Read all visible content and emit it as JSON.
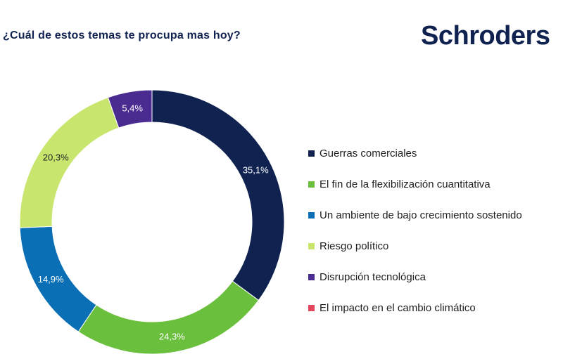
{
  "header": {
    "title": "¿Cuál de estos temas te procupa mas hoy?",
    "logo_text": "Schroders"
  },
  "chart_data": {
    "type": "pie",
    "variant": "donut",
    "title": "¿Cuál de estos temas te procupa mas hoy?",
    "legend_position": "right",
    "series": [
      {
        "name": "Guerras comerciales",
        "value": 35.1,
        "label": "35,1%",
        "color": "#0f2250",
        "label_color": "#ffffff"
      },
      {
        "name": "El fin de la flexibilización cuantitativa",
        "value": 24.3,
        "label": "24,3%",
        "color": "#6abf3c",
        "label_color": "#ffffff"
      },
      {
        "name": "Un ambiente de bajo crecimiento sostenido",
        "value": 14.9,
        "label": "14,9%",
        "color": "#0a6fb5",
        "label_color": "#ffffff"
      },
      {
        "name": "Riesgo político",
        "value": 20.3,
        "label": "20,3%",
        "color": "#c8e66e",
        "label_color": "#1f1f1f"
      },
      {
        "name": "Disrupción tecnológica",
        "value": 5.4,
        "label": "5,4%",
        "color": "#4a2c91",
        "label_color": "#ffffff"
      },
      {
        "name": "El impacto en el cambio climático",
        "value": 0,
        "label": "",
        "color": "#e0455c",
        "label_color": "#ffffff"
      }
    ]
  }
}
